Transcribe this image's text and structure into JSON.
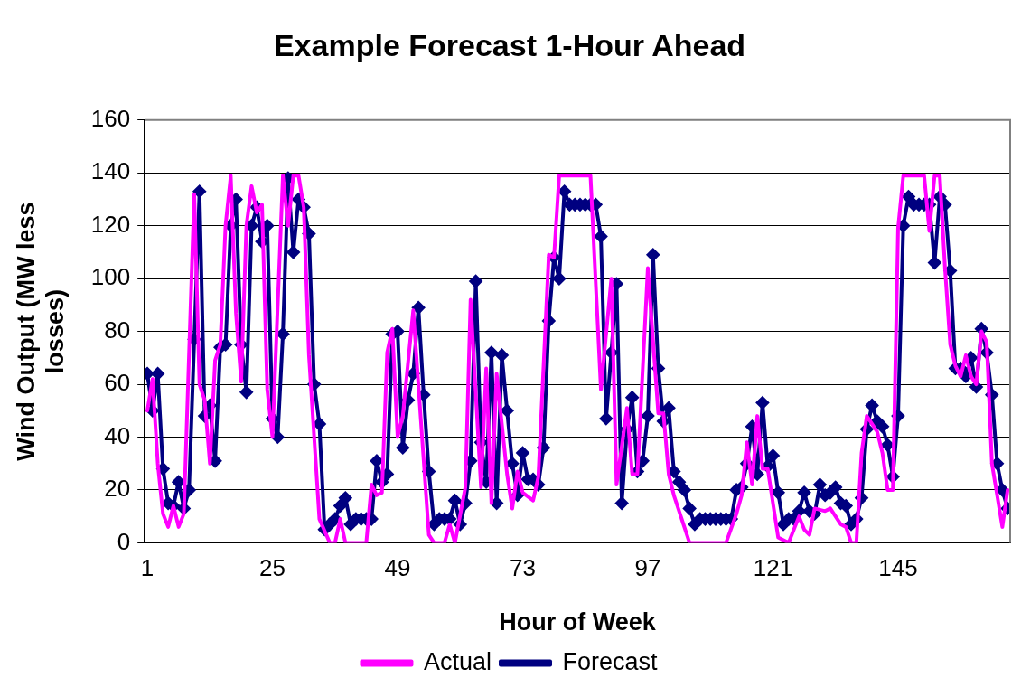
{
  "chart_data": {
    "type": "line",
    "title": "Example Forecast 1-Hour Ahead",
    "xlabel": "Hour of Week",
    "ylabel": "Wind Output (MW less losses)",
    "x": [
      1,
      2,
      3,
      4,
      5,
      6,
      7,
      8,
      9,
      10,
      11,
      12,
      13,
      14,
      15,
      16,
      17,
      18,
      19,
      20,
      21,
      22,
      23,
      24,
      25,
      26,
      27,
      28,
      29,
      30,
      31,
      32,
      33,
      34,
      35,
      36,
      37,
      38,
      39,
      40,
      41,
      42,
      43,
      44,
      45,
      46,
      47,
      48,
      49,
      50,
      51,
      52,
      53,
      54,
      55,
      56,
      57,
      58,
      59,
      60,
      61,
      62,
      63,
      64,
      65,
      66,
      67,
      68,
      69,
      70,
      71,
      72,
      73,
      74,
      75,
      76,
      77,
      78,
      79,
      80,
      81,
      82,
      83,
      84,
      85,
      86,
      87,
      88,
      89,
      90,
      91,
      92,
      93,
      94,
      95,
      96,
      97,
      98,
      99,
      100,
      101,
      102,
      103,
      104,
      105,
      106,
      107,
      108,
      109,
      110,
      111,
      112,
      113,
      114,
      115,
      116,
      117,
      118,
      119,
      120,
      121,
      122,
      123,
      124,
      125,
      126,
      127,
      128,
      129,
      130,
      131,
      132,
      133,
      134,
      135,
      136,
      137,
      138,
      139,
      140,
      141,
      142,
      143,
      144,
      145,
      146,
      147,
      148,
      149,
      150,
      151,
      152,
      153,
      154,
      155,
      156,
      157,
      158,
      159,
      160,
      161,
      162,
      163,
      164,
      165,
      166
    ],
    "series": [
      {
        "name": "Forecast",
        "color": "#000080",
        "marker": "diamond",
        "values": [
          64,
          50,
          64,
          28,
          15,
          14,
          23,
          13,
          20,
          77,
          133,
          48,
          52,
          31,
          74,
          75,
          120,
          130,
          75,
          57,
          120,
          127,
          114,
          120,
          47,
          40,
          79,
          138,
          110,
          130,
          127,
          117,
          60,
          45,
          5,
          7,
          9,
          14,
          17,
          7,
          9,
          9,
          9,
          9,
          31,
          23,
          26,
          79,
          80,
          36,
          54,
          64,
          89,
          56,
          27,
          7,
          9,
          9,
          9,
          16,
          7,
          15,
          31,
          99,
          38,
          23,
          72,
          15,
          71,
          50,
          30,
          18,
          34,
          24,
          24,
          22,
          36,
          84,
          108,
          100,
          133,
          128,
          128,
          128,
          128,
          128,
          128,
          116,
          47,
          72,
          98,
          15,
          43,
          55,
          27,
          31,
          48,
          109,
          66,
          46,
          51,
          27,
          23,
          20,
          13,
          7,
          9,
          9,
          9,
          9,
          9,
          9,
          9,
          20,
          21,
          30,
          44,
          26,
          53,
          29,
          33,
          19,
          7,
          9,
          9,
          12,
          19,
          12,
          11,
          22,
          18,
          19,
          21,
          15,
          14,
          7,
          9,
          17,
          43,
          52,
          46,
          44,
          37,
          25,
          48,
          120,
          131,
          128,
          128,
          128,
          128,
          106,
          131,
          128,
          103,
          66,
          66,
          63,
          70,
          59,
          81,
          72,
          56,
          30,
          20,
          13
        ]
      },
      {
        "name": "Actual",
        "color": "#ff00ff",
        "marker": "none",
        "x": [
          1,
          2,
          3,
          4,
          5,
          6,
          7,
          8,
          10,
          11,
          12,
          13,
          14,
          15,
          16,
          17,
          18,
          19,
          20,
          21,
          22,
          23,
          24,
          25,
          27,
          28,
          29,
          30,
          31,
          32,
          34,
          36,
          37,
          38,
          39,
          43,
          44,
          45,
          46,
          47,
          48,
          49,
          50,
          52,
          55,
          56,
          58,
          59,
          60,
          62,
          63,
          65,
          66,
          67,
          68,
          70,
          71,
          72,
          73,
          75,
          76,
          78,
          79,
          80,
          86,
          88,
          90,
          91,
          93,
          94,
          95,
          97,
          99,
          100,
          101,
          102,
          105,
          112,
          114,
          115,
          116,
          117,
          118,
          119,
          120,
          122,
          124,
          126,
          127,
          128,
          129,
          131,
          132,
          134,
          135,
          136,
          137,
          138,
          139,
          141,
          142,
          143,
          144,
          145,
          146,
          150,
          151,
          152,
          153,
          154,
          155,
          156,
          157,
          158,
          159,
          160,
          161,
          162,
          163,
          164,
          165,
          166
        ],
        "values": [
          50,
          62,
          30,
          11,
          6,
          14,
          6,
          11,
          132,
          60,
          54,
          30,
          69,
          75,
          120,
          139,
          87,
          61,
          120,
          135,
          125,
          128,
          58,
          40,
          139,
          120,
          139,
          139,
          127,
          71,
          9,
          0,
          0,
          9,
          0,
          0,
          22,
          18,
          19,
          72,
          81,
          40,
          48,
          88,
          3,
          0,
          0,
          7,
          0,
          21,
          92,
          21,
          66,
          15,
          64,
          26,
          13,
          27,
          19,
          16,
          25,
          109,
          108,
          139,
          139,
          58,
          100,
          22,
          51,
          26,
          26,
          104,
          49,
          49,
          26,
          18,
          0,
          0,
          11,
          18,
          38,
          22,
          48,
          28,
          28,
          2,
          0,
          10,
          5,
          3,
          13,
          12,
          13,
          7,
          6,
          0,
          0,
          34,
          48,
          42,
          34,
          20,
          20,
          119,
          139,
          139,
          118,
          139,
          139,
          104,
          75,
          67,
          63,
          71,
          63,
          60,
          80,
          76,
          30,
          18,
          6,
          20
        ]
      }
    ],
    "xlim": [
      0.5,
      166.5
    ],
    "xticks": [
      1,
      25,
      49,
      73,
      97,
      121,
      145
    ],
    "ylim": [
      0,
      160
    ],
    "yticks": [
      0,
      20,
      40,
      60,
      80,
      100,
      120,
      140,
      160
    ],
    "grid": "y",
    "legend": "bottom",
    "line_style": "solid"
  }
}
